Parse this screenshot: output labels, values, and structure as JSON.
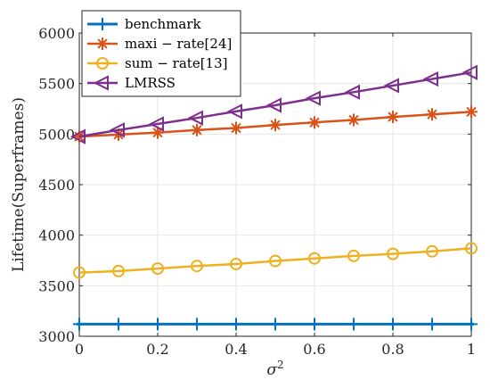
{
  "chart_data": {
    "type": "line",
    "title": "",
    "xlabel": "σ",
    "xlabel_superscript": "2",
    "ylabel": "Lifetime(Superframes)",
    "xlim": [
      0,
      1
    ],
    "ylim": [
      3000,
      6000
    ],
    "xticks": [
      0,
      0.2,
      0.4,
      0.6,
      0.8,
      1
    ],
    "xtick_labels": [
      "0",
      "0.2",
      "0.4",
      "0.6",
      "0.8",
      "1"
    ],
    "yticks": [
      3000,
      3500,
      4000,
      4500,
      5000,
      5500,
      6000
    ],
    "ytick_labels": [
      "3000",
      "3500",
      "4000",
      "4500",
      "5000",
      "5500",
      "6000"
    ],
    "grid": true,
    "legend_position": "top-left",
    "x": [
      0,
      0.1,
      0.2,
      0.3,
      0.4,
      0.5,
      0.6,
      0.7,
      0.8,
      0.9,
      1.0
    ],
    "series": [
      {
        "name": "benchmark",
        "color": "#0072BD",
        "marker": "plus",
        "values": [
          3120,
          3120,
          3120,
          3120,
          3120,
          3120,
          3120,
          3120,
          3120,
          3120,
          3120
        ]
      },
      {
        "name": "maxi − rate[24]",
        "color": "#D95319",
        "marker": "asterisk",
        "values": [
          4975,
          4995,
          5015,
          5040,
          5060,
          5090,
          5115,
          5140,
          5170,
          5195,
          5220
        ]
      },
      {
        "name": "sum − rate[13]",
        "color": "#EDB120",
        "marker": "circle",
        "values": [
          3630,
          3645,
          3670,
          3695,
          3715,
          3745,
          3770,
          3795,
          3815,
          3840,
          3870
        ]
      },
      {
        "name": "LMRSS",
        "color": "#7E2F8E",
        "marker": "triangle-left",
        "values": [
          4975,
          5040,
          5100,
          5160,
          5225,
          5285,
          5355,
          5415,
          5480,
          5545,
          5610
        ]
      }
    ]
  }
}
